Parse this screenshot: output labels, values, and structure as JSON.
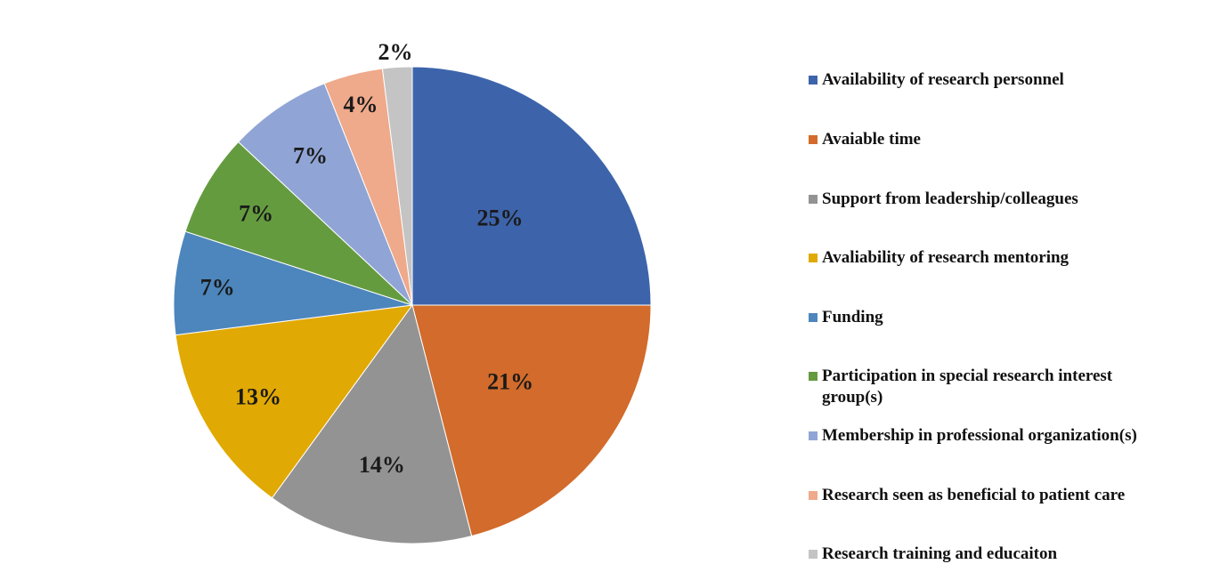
{
  "chart_data": {
    "type": "pie",
    "title": "",
    "start_angle_deg": 0,
    "direction": "clockwise",
    "legend_position": "right",
    "slices": [
      {
        "label": "Availability of research personnel",
        "value": 25,
        "display": "25%",
        "color": "#3D64AB"
      },
      {
        "label": "Avaiable time",
        "value": 21,
        "display": "21%",
        "color": "#D26B2B"
      },
      {
        "label": "Support from leadership/colleagues",
        "value": 14,
        "display": "14%",
        "color": "#939393"
      },
      {
        "label": "Avaliability of research mentoring",
        "value": 13,
        "display": "13%",
        "color": "#E1A904"
      },
      {
        "label": "Funding",
        "value": 7,
        "display": "7%",
        "color": "#4D86BC"
      },
      {
        "label": "Participation in special research interest group(s)",
        "value": 7,
        "display": "7%",
        "color": "#649B3F"
      },
      {
        "label": "Membership in professional organization(s)",
        "value": 7,
        "display": "7%",
        "color": "#90A5D5"
      },
      {
        "label": "Research seen as beneficial to patient care",
        "value": 4,
        "display": "4%",
        "color": "#EFA98B"
      },
      {
        "label": "Research training and educaiton",
        "value": 2,
        "display": "2%",
        "color": "#C4C4C4"
      }
    ]
  }
}
